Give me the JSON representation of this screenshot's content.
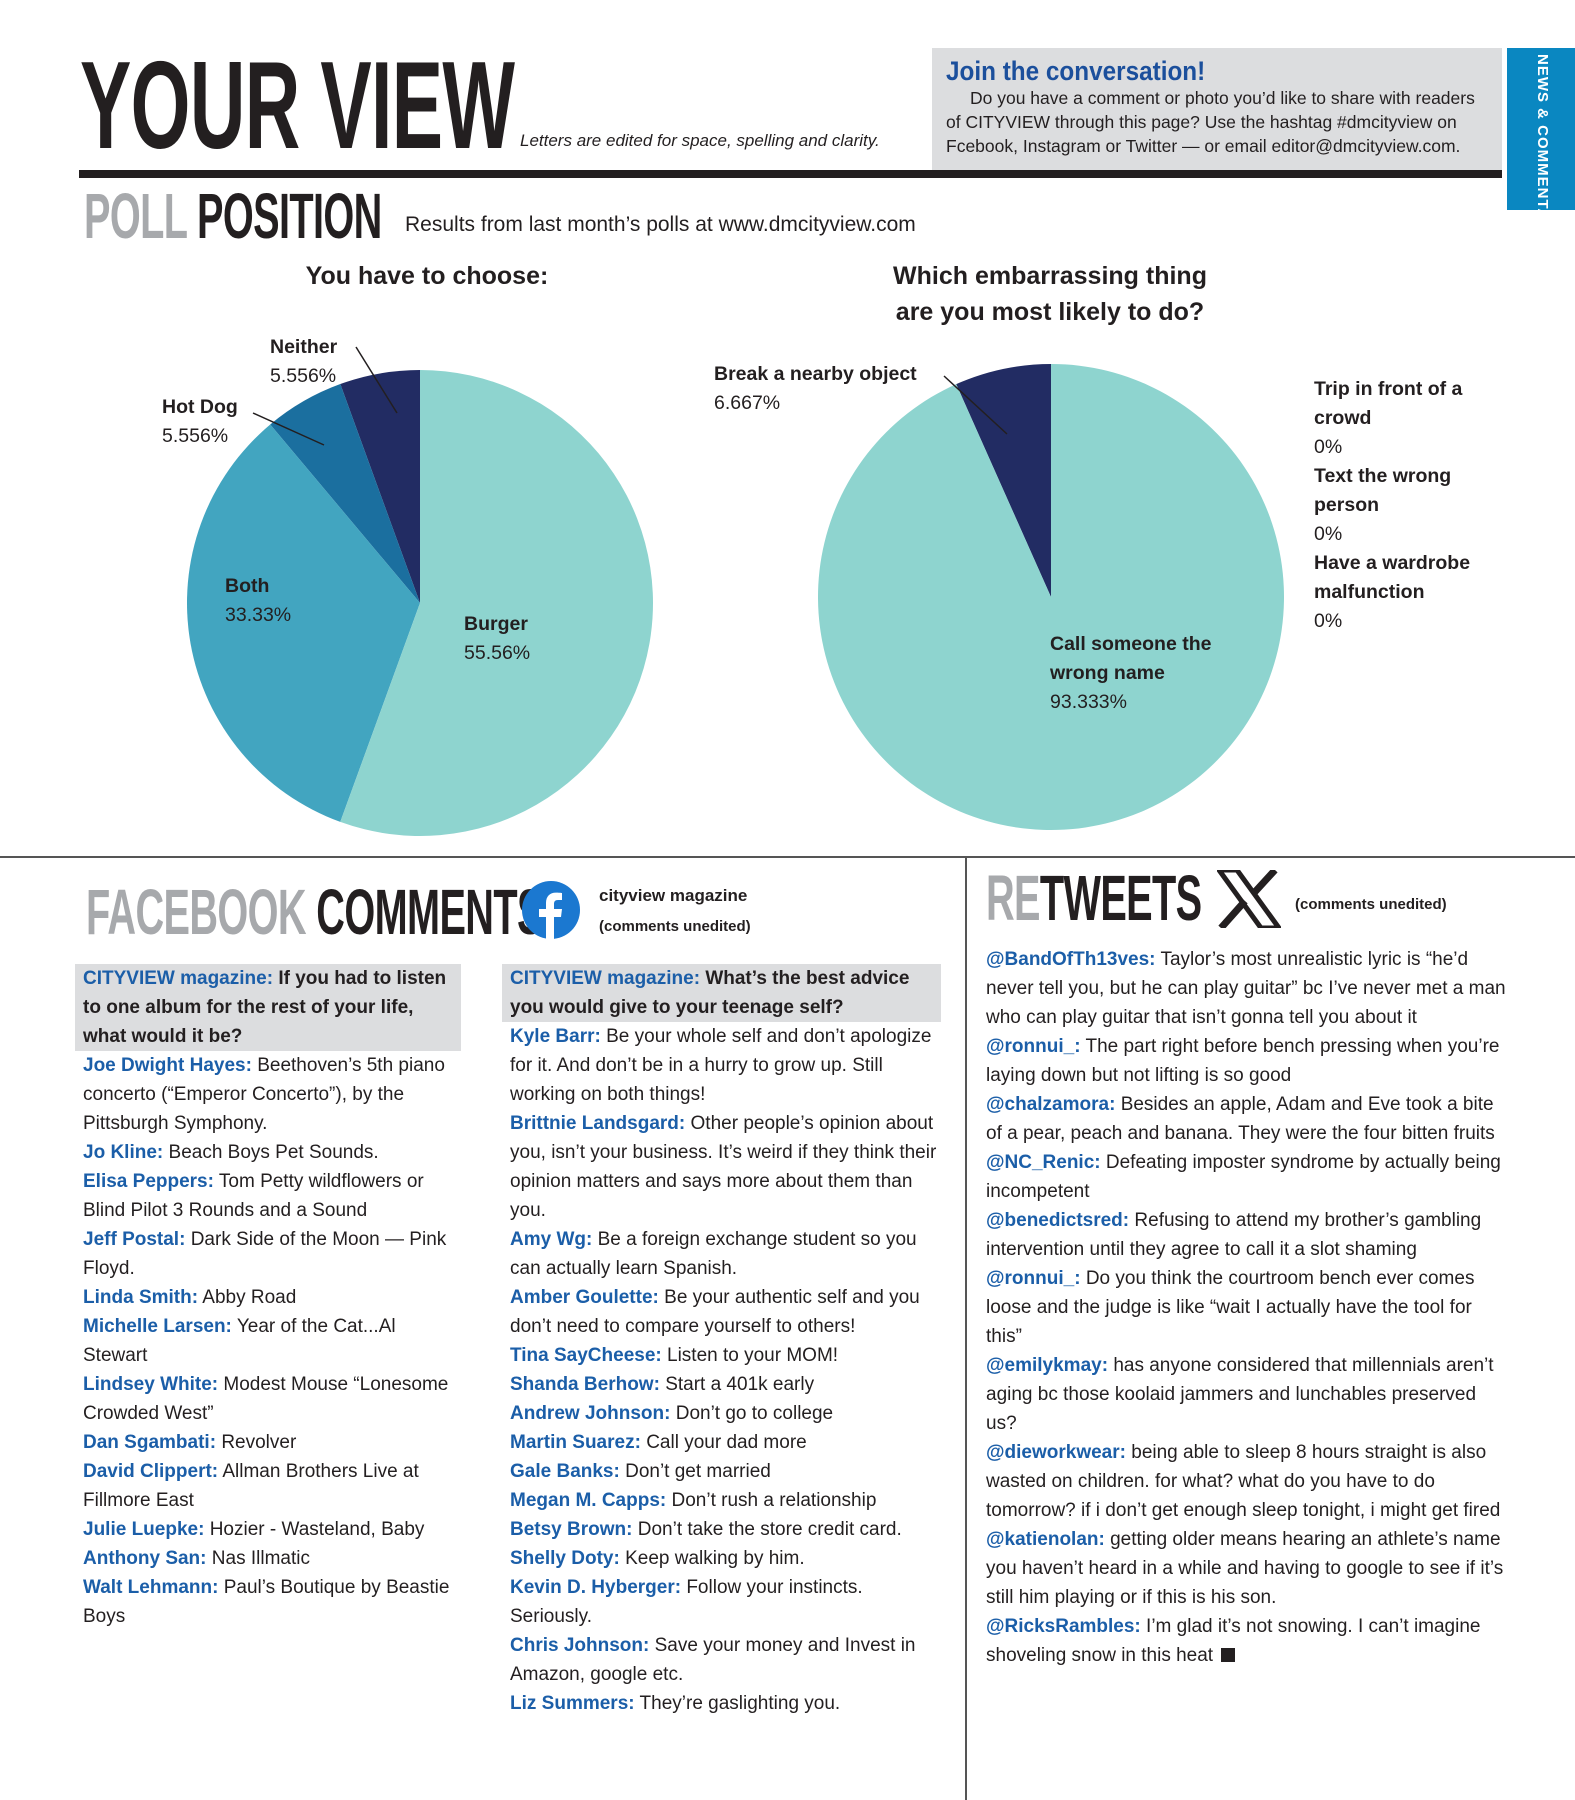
{
  "header": {
    "title": "YOUR VIEW",
    "edited_note": "Letters are edited for space, spelling and clarity.",
    "section_tab": "NEWS & COMMENTARY"
  },
  "join": {
    "title": "Join the conversation!",
    "body": "Do you have a comment or photo you’d like to share with readers of CITYVIEW through this page? Use the hashtag #dmcityview on Fcebook, Instagram or Twitter — or email editor@dmcityview.com."
  },
  "poll": {
    "title_gray": "POLL",
    "title_black": "POSITION",
    "subtitle": "Results from last month’s polls at www.dmcityview.com"
  },
  "chart_data": [
    {
      "type": "pie",
      "title": "You have to choose:",
      "labels": [
        "Burger",
        "Both",
        "Hot Dog",
        "Neither"
      ],
      "values": [
        55.56,
        33.33,
        5.556,
        5.556
      ],
      "value_labels": [
        "55.56%",
        "33.33%",
        "5.556%",
        "5.556%"
      ],
      "colors": [
        "#8ed4cf",
        "#42a5c0",
        "#1b6f9f",
        "#222c63"
      ]
    },
    {
      "type": "pie",
      "title": "Which embarrassing thing are you most likely to do?",
      "title_lines": [
        "Which embarrassing thing",
        "are you most likely to do?"
      ],
      "labels": [
        "Call someone the wrong name",
        "Break a nearby object",
        "Trip in front of a crowd",
        "Text the wrong person",
        "Have a wardrobe malfunction"
      ],
      "values": [
        93.333,
        6.667,
        0,
        0,
        0
      ],
      "value_labels": [
        "93.333%",
        "6.667%",
        "0%",
        "0%",
        "0%"
      ],
      "colors": [
        "#8ed4cf",
        "#222c63",
        "#42a5c0",
        "#1b6f9f",
        "#0a87c1"
      ]
    }
  ],
  "facebook": {
    "title_gray": "FACEBOOK",
    "title_black": "COMMENTS",
    "page": "cityview magazine",
    "note": "(comments unedited)",
    "q1": {
      "source": "CITYVIEW magazine:",
      "question": "If you had to listen to one album for the rest of your life, what would it be?"
    },
    "a1": [
      {
        "name": "Joe Dwight Hayes:",
        "text": "Beethoven’s 5th piano concerto (“Emperor Concerto”), by the Pittsburgh Symphony."
      },
      {
        "name": "Jo Kline:",
        "text": "Beach Boys Pet Sounds."
      },
      {
        "name": "Elisa Peppers:",
        "text": "Tom Petty wildflowers or Blind Pilot 3 Rounds and a Sound"
      },
      {
        "name": "Jeff Postal:",
        "text": "Dark Side of the Moon — Pink Floyd."
      },
      {
        "name": "Linda Smith:",
        "text": "Abby Road"
      },
      {
        "name": "Michelle Larsen:",
        "text": "Year of the Cat...Al Stewart"
      },
      {
        "name": "Lindsey White:",
        "text": "Modest Mouse “Lonesome Crowded West”"
      },
      {
        "name": "Dan Sgambati:",
        "text": "Revolver"
      },
      {
        "name": "David Clippert:",
        "text": "Allman Brothers Live at Fillmore East"
      },
      {
        "name": "Julie Luepke:",
        "text": "Hozier - Wasteland, Baby"
      },
      {
        "name": "Anthony San:",
        "text": "Nas Illmatic"
      },
      {
        "name": "Walt Lehmann:",
        "text": "Paul’s Boutique by Beastie Boys"
      }
    ],
    "q2": {
      "source": "CITYVIEW magazine:",
      "question": "What’s the best advice you would give to your teenage self?"
    },
    "a2": [
      {
        "name": "Kyle Barr:",
        "text": "Be your whole self and don’t apologize for it. And don’t be in a hurry to grow up. Still working on both things!"
      },
      {
        "name": "Brittnie Landsgard:",
        "text": "Other people’s opinion about you, isn’t your business. It’s weird if they think their opinion matters and says more about them than you."
      },
      {
        "name": "Amy Wg:",
        "text": "Be a foreign exchange student so you can actually learn Spanish."
      },
      {
        "name": "Amber Goulette:",
        "text": "Be your authentic self and you don’t need to compare yourself to others!"
      },
      {
        "name": "Tina SayCheese:",
        "text": "Listen to your MOM!"
      },
      {
        "name": "Shanda Berhow:",
        "text": "Start a 401k early"
      },
      {
        "name": "Andrew Johnson:",
        "text": "Don’t go to college"
      },
      {
        "name": "Martin Suarez:",
        "text": "Call your dad more"
      },
      {
        "name": "Gale Banks:",
        "text": "Don’t get married"
      },
      {
        "name": "Megan M. Capps:",
        "text": "Don’t rush a relationship"
      },
      {
        "name": "Betsy Brown:",
        "text": "Don’t take the store credit card."
      },
      {
        "name": "Shelly Doty:",
        "text": "Keep walking by him."
      },
      {
        "name": "Kevin D. Hyberger:",
        "text": "Follow your instincts. Seriously."
      },
      {
        "name": "Chris Johnson:",
        "text": "Save your money and Invest in Amazon, google etc."
      },
      {
        "name": "Liz Summers:",
        "text": "They’re gaslighting you."
      }
    ]
  },
  "retweets": {
    "title_gray": "RE",
    "title_black": "TWEETS",
    "note": "(comments unedited)",
    "items": [
      {
        "name": "@BandOfTh13ves:",
        "text": "Taylor’s most unrealistic lyric is “he’d never tell you, but he can play guitar” bc I’ve never met a man who can play guitar that isn’t gonna tell you about it"
      },
      {
        "name": "@ronnui_:",
        "text": "The part right before bench pressing when you’re laying down but not lifting is so good"
      },
      {
        "name": "@chalzamora:",
        "text": "Besides an apple, Adam and Eve took a bite of a pear, peach and banana. They were the four bitten fruits"
      },
      {
        "name": "@NC_Renic:",
        "text": "Defeating imposter syndrome by actually being incompetent"
      },
      {
        "name": "@benedictsred:",
        "text": "Refusing to attend my brother’s gambling intervention until they agree to call it a slot shaming"
      },
      {
        "name": "@ronnui_:",
        "text": "Do you think the courtroom bench ever comes loose and the judge is like “wait I actually have the tool for this”"
      },
      {
        "name": "@emilykmay:",
        "text": "has anyone considered that millennials aren’t aging bc those koolaid jammers and lunchables preserved us?"
      },
      {
        "name": "@dieworkwear:",
        "text": "being able to sleep 8 hours straight is also wasted on children. for what? what do you have to do tomorrow? if i don’t get enough sleep tonight, i might get fired"
      },
      {
        "name": "@katienolan:",
        "text": "getting older means hearing an athlete’s name you haven’t heard in a while and having to google to see if it’s still him playing or if this is his son."
      },
      {
        "name": "@RicksRambles:",
        "text": "I’m glad it’s not snowing. I can’t imagine shoveling snow in this heat"
      }
    ]
  }
}
